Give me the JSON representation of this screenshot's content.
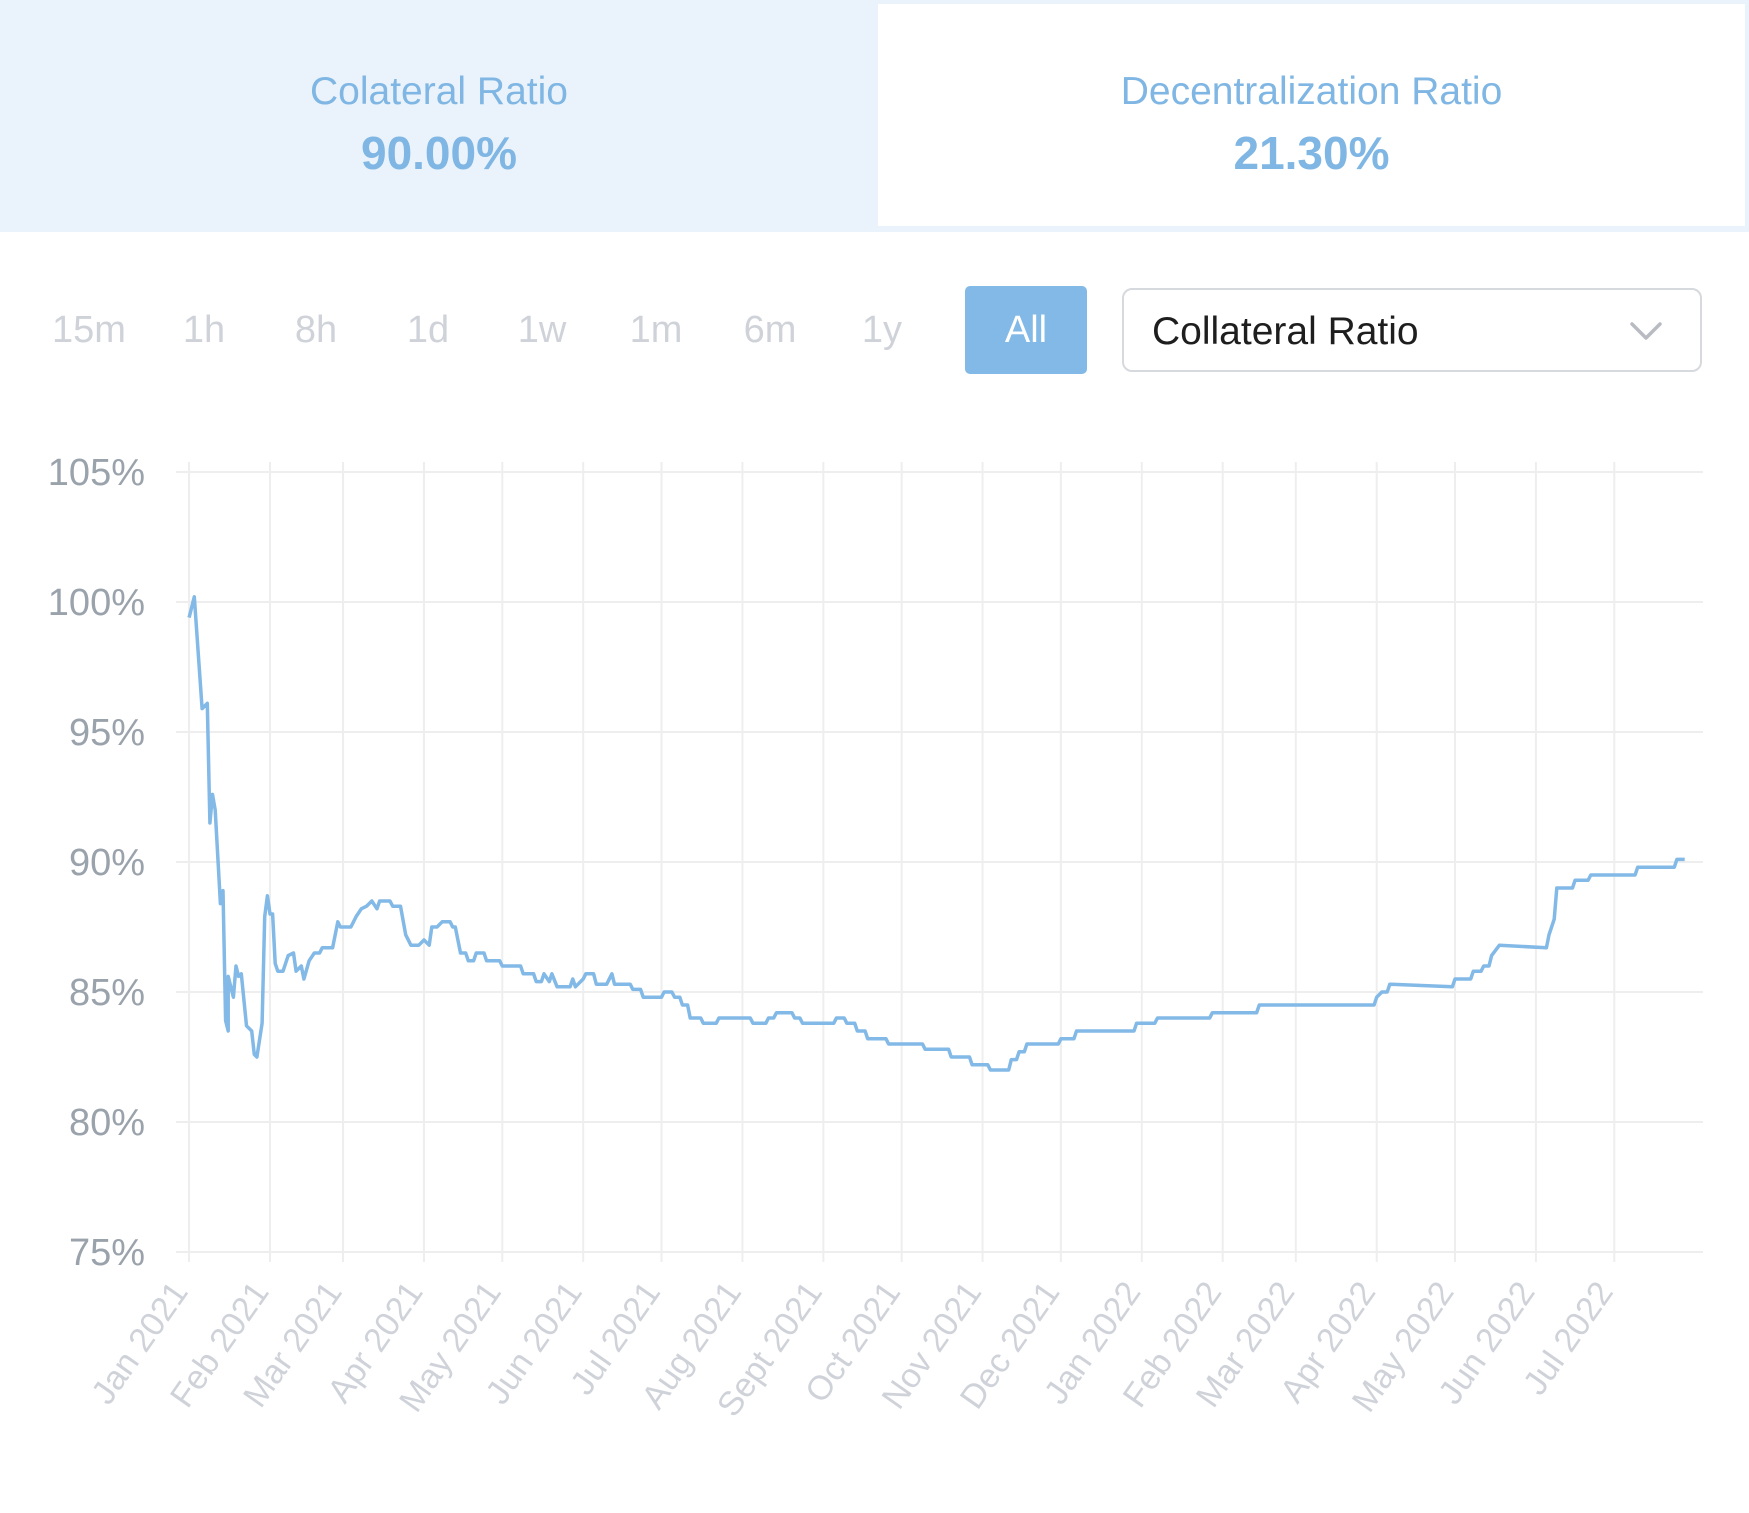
{
  "stats": [
    {
      "label": "Colateral Ratio",
      "value": "90.00%"
    },
    {
      "label": "Decentralization Ratio",
      "value": "21.30%"
    }
  ],
  "ranges": [
    "15m",
    "1h",
    "8h",
    "1d",
    "1w",
    "1m",
    "6m",
    "1y",
    "All"
  ],
  "active_range": "All",
  "metric_select": {
    "selected": "Collateral Ratio"
  },
  "colors": {
    "line": "#82b9e6",
    "accent": "#82b9e6",
    "stat_text": "#7fb6e3",
    "grid": "#eeeeee"
  },
  "chart_data": {
    "type": "line",
    "title": "",
    "xlabel": "",
    "ylabel": "",
    "x_ticks": [
      "Jan 2021",
      "Feb 2021",
      "Mar 2021",
      "Apr 2021",
      "May 2021",
      "Jun 2021",
      "Jul 2021",
      "Aug 2021",
      "Sept 2021",
      "Oct 2021",
      "Nov 2021",
      "Dec 2021",
      "Jan 2022",
      "Feb 2022",
      "Mar 2022",
      "Apr 2022",
      "May 2022",
      "Jun 2022",
      "Jul 2022"
    ],
    "y_ticks": [
      "75%",
      "80%",
      "85%",
      "90%",
      "95%",
      "100%",
      "105%"
    ],
    "ylim": [
      75,
      105
    ],
    "xlim": [
      "2020-12-27",
      "2022-07-06"
    ],
    "grid": true,
    "legend": "none",
    "series": [
      {
        "name": "",
        "points": [
          [
            "2021-01-01",
            99.4
          ],
          [
            "2021-01-03",
            100.2
          ],
          [
            "2021-01-06",
            95.9
          ],
          [
            "2021-01-07",
            96.0
          ],
          [
            "2021-01-08",
            96.1
          ],
          [
            "2021-01-09",
            91.5
          ],
          [
            "2021-01-10",
            92.6
          ],
          [
            "2021-01-11",
            92.0
          ],
          [
            "2021-01-13",
            88.4
          ],
          [
            "2021-01-14",
            88.9
          ],
          [
            "2021-01-15",
            83.9
          ],
          [
            "2021-01-16",
            83.5
          ],
          [
            "2021-01-16",
            85.6
          ],
          [
            "2021-01-18",
            84.8
          ],
          [
            "2021-01-19",
            86.0
          ],
          [
            "2021-01-20",
            85.6
          ],
          [
            "2021-01-21",
            85.7
          ],
          [
            "2021-01-23",
            83.7
          ],
          [
            "2021-01-25",
            83.5
          ],
          [
            "2021-01-26",
            82.6
          ],
          [
            "2021-01-27",
            82.5
          ],
          [
            "2021-01-29",
            83.8
          ],
          [
            "2021-01-30",
            87.9
          ],
          [
            "2021-01-31",
            88.7
          ],
          [
            "2021-02-01",
            88.0
          ],
          [
            "2021-02-02",
            88.0
          ],
          [
            "2021-02-03",
            86.1
          ],
          [
            "2021-02-04",
            85.8
          ],
          [
            "2021-02-06",
            85.8
          ],
          [
            "2021-02-08",
            86.4
          ],
          [
            "2021-02-10",
            86.5
          ],
          [
            "2021-02-11",
            85.8
          ],
          [
            "2021-02-13",
            86.0
          ],
          [
            "2021-02-14",
            85.5
          ],
          [
            "2021-02-16",
            86.2
          ],
          [
            "2021-02-18",
            86.5
          ],
          [
            "2021-02-20",
            86.5
          ],
          [
            "2021-02-21",
            86.7
          ],
          [
            "2021-02-25",
            86.7
          ],
          [
            "2021-02-27",
            87.7
          ],
          [
            "2021-02-28",
            87.5
          ],
          [
            "2021-03-04",
            87.5
          ],
          [
            "2021-03-06",
            87.9
          ],
          [
            "2021-03-08",
            88.2
          ],
          [
            "2021-03-10",
            88.3
          ],
          [
            "2021-03-12",
            88.5
          ],
          [
            "2021-03-14",
            88.2
          ],
          [
            "2021-03-15",
            88.5
          ],
          [
            "2021-03-19",
            88.5
          ],
          [
            "2021-03-20",
            88.3
          ],
          [
            "2021-03-23",
            88.3
          ],
          [
            "2021-03-25",
            87.2
          ],
          [
            "2021-03-27",
            86.8
          ],
          [
            "2021-03-30",
            86.8
          ],
          [
            "2021-04-01",
            87.0
          ],
          [
            "2021-04-03",
            86.8
          ],
          [
            "2021-04-04",
            87.5
          ],
          [
            "2021-04-06",
            87.5
          ],
          [
            "2021-04-08",
            87.7
          ],
          [
            "2021-04-11",
            87.7
          ],
          [
            "2021-04-12",
            87.5
          ],
          [
            "2021-04-13",
            87.5
          ],
          [
            "2021-04-15",
            86.5
          ],
          [
            "2021-04-17",
            86.5
          ],
          [
            "2021-04-18",
            86.2
          ],
          [
            "2021-04-20",
            86.2
          ],
          [
            "2021-04-21",
            86.5
          ],
          [
            "2021-04-24",
            86.5
          ],
          [
            "2021-04-25",
            86.2
          ],
          [
            "2021-04-30",
            86.2
          ],
          [
            "2021-05-01",
            86.0
          ],
          [
            "2021-05-08",
            86.0
          ],
          [
            "2021-05-09",
            85.7
          ],
          [
            "2021-05-13",
            85.7
          ],
          [
            "2021-05-14",
            85.4
          ],
          [
            "2021-05-16",
            85.4
          ],
          [
            "2021-05-17",
            85.7
          ],
          [
            "2021-05-19",
            85.4
          ],
          [
            "2021-05-20",
            85.7
          ],
          [
            "2021-05-22",
            85.2
          ],
          [
            "2021-05-27",
            85.2
          ],
          [
            "2021-05-28",
            85.5
          ],
          [
            "2021-05-29",
            85.2
          ],
          [
            "2021-06-01",
            85.5
          ],
          [
            "2021-06-02",
            85.7
          ],
          [
            "2021-06-05",
            85.7
          ],
          [
            "2021-06-06",
            85.3
          ],
          [
            "2021-06-10",
            85.3
          ],
          [
            "2021-06-12",
            85.7
          ],
          [
            "2021-06-13",
            85.3
          ],
          [
            "2021-06-19",
            85.3
          ],
          [
            "2021-06-20",
            85.1
          ],
          [
            "2021-06-23",
            85.1
          ],
          [
            "2021-06-24",
            84.8
          ],
          [
            "2021-07-01",
            84.8
          ],
          [
            "2021-07-02",
            85.0
          ],
          [
            "2021-07-05",
            85.0
          ],
          [
            "2021-07-06",
            84.8
          ],
          [
            "2021-07-08",
            84.8
          ],
          [
            "2021-07-09",
            84.5
          ],
          [
            "2021-07-11",
            84.5
          ],
          [
            "2021-07-12",
            84.0
          ],
          [
            "2021-07-16",
            84.0
          ],
          [
            "2021-07-17",
            83.8
          ],
          [
            "2021-07-22",
            83.8
          ],
          [
            "2021-07-23",
            84.0
          ],
          [
            "2021-08-04",
            84.0
          ],
          [
            "2021-08-05",
            83.8
          ],
          [
            "2021-08-10",
            83.8
          ],
          [
            "2021-08-11",
            84.0
          ],
          [
            "2021-08-13",
            84.0
          ],
          [
            "2021-08-14",
            84.2
          ],
          [
            "2021-08-20",
            84.2
          ],
          [
            "2021-08-21",
            84.0
          ],
          [
            "2021-08-23",
            84.0
          ],
          [
            "2021-08-24",
            83.8
          ],
          [
            "2021-09-05",
            83.8
          ],
          [
            "2021-09-06",
            84.0
          ],
          [
            "2021-09-09",
            84.0
          ],
          [
            "2021-09-10",
            83.8
          ],
          [
            "2021-09-13",
            83.8
          ],
          [
            "2021-09-14",
            83.5
          ],
          [
            "2021-09-17",
            83.5
          ],
          [
            "2021-09-18",
            83.2
          ],
          [
            "2021-09-25",
            83.2
          ],
          [
            "2021-09-26",
            83.0
          ],
          [
            "2021-10-09",
            83.0
          ],
          [
            "2021-10-10",
            82.8
          ],
          [
            "2021-10-19",
            82.8
          ],
          [
            "2021-10-20",
            82.5
          ],
          [
            "2021-10-27",
            82.5
          ],
          [
            "2021-10-28",
            82.2
          ],
          [
            "2021-11-03",
            82.2
          ],
          [
            "2021-11-04",
            82.0
          ],
          [
            "2021-11-11",
            82.0
          ],
          [
            "2021-11-12",
            82.4
          ],
          [
            "2021-11-14",
            82.4
          ],
          [
            "2021-11-15",
            82.7
          ],
          [
            "2021-11-17",
            82.7
          ],
          [
            "2021-11-18",
            83.0
          ],
          [
            "2021-11-30",
            83.0
          ],
          [
            "2021-12-01",
            83.2
          ],
          [
            "2021-12-06",
            83.2
          ],
          [
            "2021-12-07",
            83.5
          ],
          [
            "2021-12-29",
            83.5
          ],
          [
            "2021-12-30",
            83.8
          ],
          [
            "2022-01-06",
            83.8
          ],
          [
            "2022-01-07",
            84.0
          ],
          [
            "2022-01-27",
            84.0
          ],
          [
            "2022-01-28",
            84.2
          ],
          [
            "2022-02-14",
            84.2
          ],
          [
            "2022-02-15",
            84.5
          ],
          [
            "2022-03-31",
            84.5
          ],
          [
            "2022-04-01",
            84.8
          ],
          [
            "2022-04-03",
            85.0
          ],
          [
            "2022-04-05",
            85.0
          ],
          [
            "2022-04-06",
            85.3
          ],
          [
            "2022-04-30",
            85.2
          ],
          [
            "2022-05-01",
            85.5
          ],
          [
            "2022-05-07",
            85.5
          ],
          [
            "2022-05-08",
            85.8
          ],
          [
            "2022-05-11",
            85.8
          ],
          [
            "2022-05-12",
            86.0
          ],
          [
            "2022-05-14",
            86.0
          ],
          [
            "2022-05-15",
            86.4
          ],
          [
            "2022-05-18",
            86.8
          ],
          [
            "2022-06-05",
            86.7
          ],
          [
            "2022-06-06",
            87.2
          ],
          [
            "2022-06-08",
            87.8
          ],
          [
            "2022-06-09",
            89.0
          ],
          [
            "2022-06-15",
            89.0
          ],
          [
            "2022-06-16",
            89.3
          ],
          [
            "2022-06-21",
            89.3
          ],
          [
            "2022-06-22",
            89.5
          ],
          [
            "2022-07-09",
            89.5
          ],
          [
            "2022-07-10",
            89.8
          ],
          [
            "2022-07-24",
            89.8
          ],
          [
            "2022-07-25",
            90.1
          ],
          [
            "2022-07-28",
            90.1
          ]
        ]
      }
    ]
  }
}
